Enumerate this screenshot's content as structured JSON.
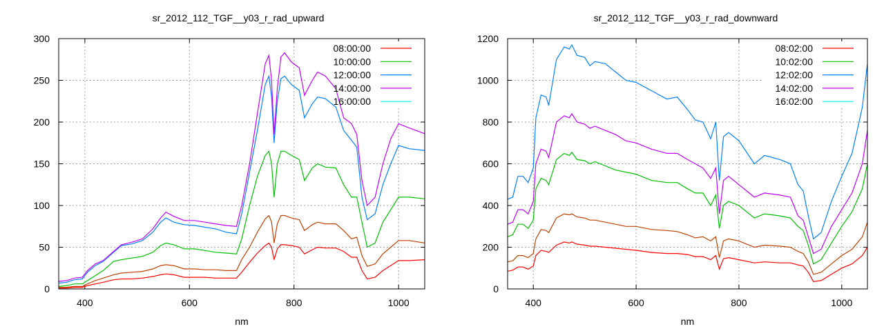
{
  "chart_data": [
    {
      "type": "line",
      "title": "sr_2012_112_TGF__y03_r_rad_upward",
      "xlabel": "nm",
      "ylabel": "",
      "xlim": [
        350,
        1050
      ],
      "ylim": [
        0,
        300
      ],
      "xticks": [
        400,
        600,
        800,
        1000
      ],
      "yticks": [
        0,
        50,
        100,
        150,
        200,
        250,
        300
      ],
      "grid": true,
      "legend_position": "top-right",
      "x": [
        350,
        365,
        380,
        395,
        405,
        420,
        435,
        455,
        470,
        490,
        510,
        530,
        545,
        555,
        570,
        590,
        610,
        630,
        650,
        670,
        690,
        700,
        715,
        730,
        745,
        752,
        757,
        762,
        768,
        775,
        782,
        795,
        810,
        820,
        835,
        845,
        860,
        880,
        895,
        910,
        920,
        930,
        940,
        955,
        970,
        985,
        1000,
        1020,
        1050
      ],
      "series": [
        {
          "name": "08:00:00",
          "color": "#ff0000",
          "legend_color": "#ff0000",
          "values": [
            1,
            1,
            2,
            2,
            4,
            6,
            8,
            11,
            12,
            12,
            13,
            15,
            17,
            18,
            17,
            14,
            14,
            14,
            13,
            13,
            13,
            20,
            32,
            43,
            52,
            55,
            50,
            35,
            48,
            53,
            53,
            52,
            50,
            42,
            47,
            50,
            49,
            49,
            45,
            38,
            38,
            22,
            12,
            14,
            22,
            28,
            34,
            34,
            35
          ]
        },
        {
          "name": "10:00:00",
          "color": "#00c000",
          "legend_color": "#00c000",
          "values": [
            3,
            4,
            6,
            6,
            10,
            16,
            22,
            33,
            35,
            37,
            39,
            44,
            52,
            55,
            53,
            48,
            48,
            46,
            44,
            43,
            42,
            60,
            100,
            135,
            160,
            165,
            150,
            110,
            150,
            165,
            165,
            160,
            155,
            130,
            145,
            150,
            146,
            145,
            125,
            110,
            110,
            80,
            50,
            55,
            80,
            95,
            110,
            110,
            108
          ]
        },
        {
          "name": "12:00:00",
          "color": "#0080ff",
          "legend_color": "#0080ff",
          "values": [
            7,
            8,
            11,
            12,
            20,
            28,
            33,
            44,
            52,
            54,
            58,
            68,
            80,
            85,
            80,
            77,
            76,
            74,
            72,
            68,
            66,
            90,
            140,
            190,
            245,
            255,
            230,
            175,
            225,
            252,
            255,
            245,
            238,
            205,
            222,
            230,
            228,
            218,
            190,
            178,
            170,
            110,
            83,
            90,
            125,
            150,
            172,
            168,
            166
          ]
        },
        {
          "name": "14:00:00",
          "color": "#c000ff",
          "legend_color": "#c000ff",
          "values": [
            9,
            10,
            13,
            14,
            22,
            30,
            34,
            45,
            53,
            56,
            60,
            72,
            85,
            92,
            87,
            82,
            82,
            80,
            78,
            76,
            75,
            100,
            150,
            210,
            270,
            280,
            250,
            185,
            240,
            278,
            283,
            272,
            265,
            232,
            250,
            260,
            255,
            240,
            205,
            198,
            185,
            130,
            100,
            110,
            150,
            180,
            198,
            193,
            186
          ]
        },
        {
          "name": "16:00:00",
          "color": "#c04000",
          "legend_color": "#00eeee",
          "values": [
            2,
            2,
            3,
            3,
            6,
            10,
            13,
            17,
            19,
            20,
            21,
            24,
            28,
            29,
            28,
            24,
            24,
            23,
            23,
            22,
            22,
            35,
            50,
            68,
            84,
            88,
            80,
            55,
            78,
            88,
            88,
            85,
            83,
            70,
            77,
            80,
            78,
            78,
            70,
            60,
            62,
            40,
            27,
            30,
            42,
            50,
            58,
            58,
            55
          ]
        }
      ]
    },
    {
      "type": "line",
      "title": "sr_2012_112_TGF__y03_r_rad_downward",
      "xlabel": "nm",
      "ylabel": "",
      "xlim": [
        350,
        1050
      ],
      "ylim": [
        0,
        1200
      ],
      "xticks": [
        400,
        600,
        800,
        1000
      ],
      "yticks": [
        0,
        200,
        400,
        600,
        800,
        1000,
        1200
      ],
      "grid": true,
      "legend_position": "top-right",
      "x": [
        350,
        360,
        370,
        380,
        390,
        400,
        405,
        415,
        425,
        430,
        445,
        460,
        470,
        475,
        485,
        500,
        510,
        520,
        540,
        560,
        580,
        600,
        630,
        660,
        680,
        700,
        715,
        730,
        745,
        755,
        762,
        770,
        780,
        800,
        830,
        850,
        880,
        900,
        915,
        925,
        935,
        945,
        960,
        980,
        1000,
        1020,
        1040,
        1050
      ],
      "series": [
        {
          "name": "08:02:00",
          "color": "#ff0000",
          "legend_color": "#ff0000",
          "values": [
            85,
            90,
            105,
            105,
            95,
            110,
            160,
            185,
            180,
            175,
            210,
            225,
            220,
            225,
            215,
            210,
            205,
            205,
            200,
            195,
            190,
            185,
            175,
            170,
            170,
            165,
            155,
            155,
            140,
            160,
            95,
            145,
            150,
            140,
            125,
            130,
            125,
            125,
            115,
            110,
            80,
            35,
            40,
            70,
            100,
            120,
            160,
            200
          ]
        },
        {
          "name": "10:02:00",
          "color": "#00c000",
          "legend_color": "#00c000",
          "values": [
            250,
            260,
            310,
            310,
            290,
            330,
            480,
            530,
            520,
            500,
            620,
            650,
            640,
            655,
            620,
            615,
            600,
            610,
            590,
            570,
            560,
            550,
            520,
            510,
            510,
            480,
            460,
            460,
            400,
            450,
            290,
            400,
            420,
            400,
            340,
            360,
            350,
            340,
            300,
            280,
            210,
            120,
            140,
            220,
            300,
            370,
            480,
            600
          ]
        },
        {
          "name": "12:02:00",
          "color": "#0080ff",
          "legend_color": "#0080ff",
          "values": [
            430,
            440,
            540,
            540,
            510,
            580,
            820,
            930,
            920,
            880,
            1100,
            1160,
            1150,
            1170,
            1120,
            1110,
            1070,
            1090,
            1080,
            1040,
            1000,
            990,
            950,
            910,
            920,
            860,
            810,
            800,
            720,
            800,
            520,
            730,
            750,
            710,
            600,
            640,
            620,
            600,
            500,
            470,
            350,
            240,
            270,
            420,
            540,
            650,
            870,
            1080
          ]
        },
        {
          "name": "14:02:00",
          "color": "#c000ff",
          "legend_color": "#c000ff",
          "values": [
            310,
            320,
            380,
            380,
            360,
            420,
            600,
            670,
            660,
            630,
            800,
            830,
            820,
            840,
            800,
            790,
            770,
            780,
            760,
            740,
            710,
            700,
            670,
            650,
            650,
            620,
            600,
            580,
            530,
            580,
            360,
            520,
            540,
            500,
            440,
            460,
            450,
            440,
            350,
            330,
            250,
            170,
            190,
            300,
            380,
            460,
            600,
            760
          ]
        },
        {
          "name": "16:02:00",
          "color": "#c04000",
          "legend_color": "#00eeee",
          "values": [
            130,
            135,
            160,
            160,
            150,
            170,
            240,
            285,
            280,
            270,
            340,
            360,
            355,
            360,
            345,
            340,
            330,
            330,
            320,
            310,
            300,
            300,
            285,
            280,
            275,
            260,
            245,
            250,
            230,
            250,
            150,
            230,
            240,
            230,
            200,
            210,
            205,
            200,
            180,
            170,
            130,
            70,
            80,
            120,
            160,
            190,
            250,
            320
          ]
        }
      ]
    }
  ]
}
